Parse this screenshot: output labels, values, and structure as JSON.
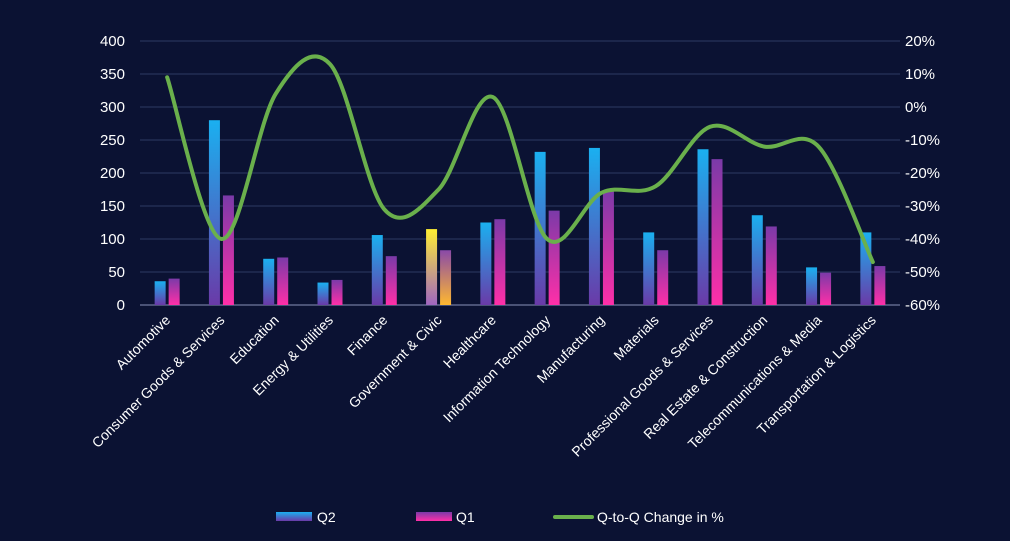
{
  "chart_data": {
    "type": "bar",
    "categories": [
      "Automotive",
      "Consumer Goods & Services",
      "Education",
      "Energy & Utilities",
      "Finance",
      "Government & Civic",
      "Healthcare",
      "Information Technology",
      "Manufacturing",
      "Materials",
      "Professional Goods & Services",
      "Real Estate & Construction",
      "Telecommunications & Media",
      "Transportation & Logistics"
    ],
    "series": [
      {
        "name": "Q2",
        "kind": "bar",
        "axis": "left",
        "values": [
          36,
          280,
          70,
          34,
          106,
          115,
          125,
          232,
          238,
          110,
          236,
          136,
          57,
          110
        ]
      },
      {
        "name": "Q1",
        "kind": "bar",
        "axis": "left",
        "values": [
          40,
          166,
          72,
          38,
          74,
          83,
          130,
          143,
          174,
          83,
          221,
          119,
          49,
          59
        ]
      },
      {
        "name": "Q-to-Q Change in %",
        "kind": "line",
        "axis": "right",
        "values": [
          9,
          -40,
          4,
          13,
          -31,
          -25,
          3,
          -40,
          -26,
          -24,
          -6,
          -12,
          -12,
          -47
        ]
      }
    ],
    "y_left": {
      "lim": [
        0,
        400
      ],
      "ticks": [
        "0",
        "50",
        "100",
        "150",
        "200",
        "250",
        "300",
        "350",
        "400"
      ]
    },
    "y_right": {
      "lim": [
        -60,
        20
      ],
      "ticks": [
        "-60%",
        "-50%",
        "-40%",
        "-30%",
        "-20%",
        "-10%",
        "0%",
        "10%",
        "20%"
      ]
    },
    "grid": true,
    "legend_position": "bottom",
    "highlight_category": "Government & Civic",
    "colors": {
      "background": "#0b1233",
      "grid": "#2e3a63",
      "q2_top": "#1ab0f0",
      "q2_bottom": "#6a3aa8",
      "q1_top": "#7b3aa8",
      "q1_bottom": "#ff2fa8",
      "highlight_q2_top": "#ffee33",
      "highlight_q2_bottom": "#a066c0",
      "highlight_q1_top": "#8a4aa8",
      "highlight_q1_bottom": "#ffb830",
      "line": "#6ab04c",
      "text": "#ffffff"
    }
  }
}
